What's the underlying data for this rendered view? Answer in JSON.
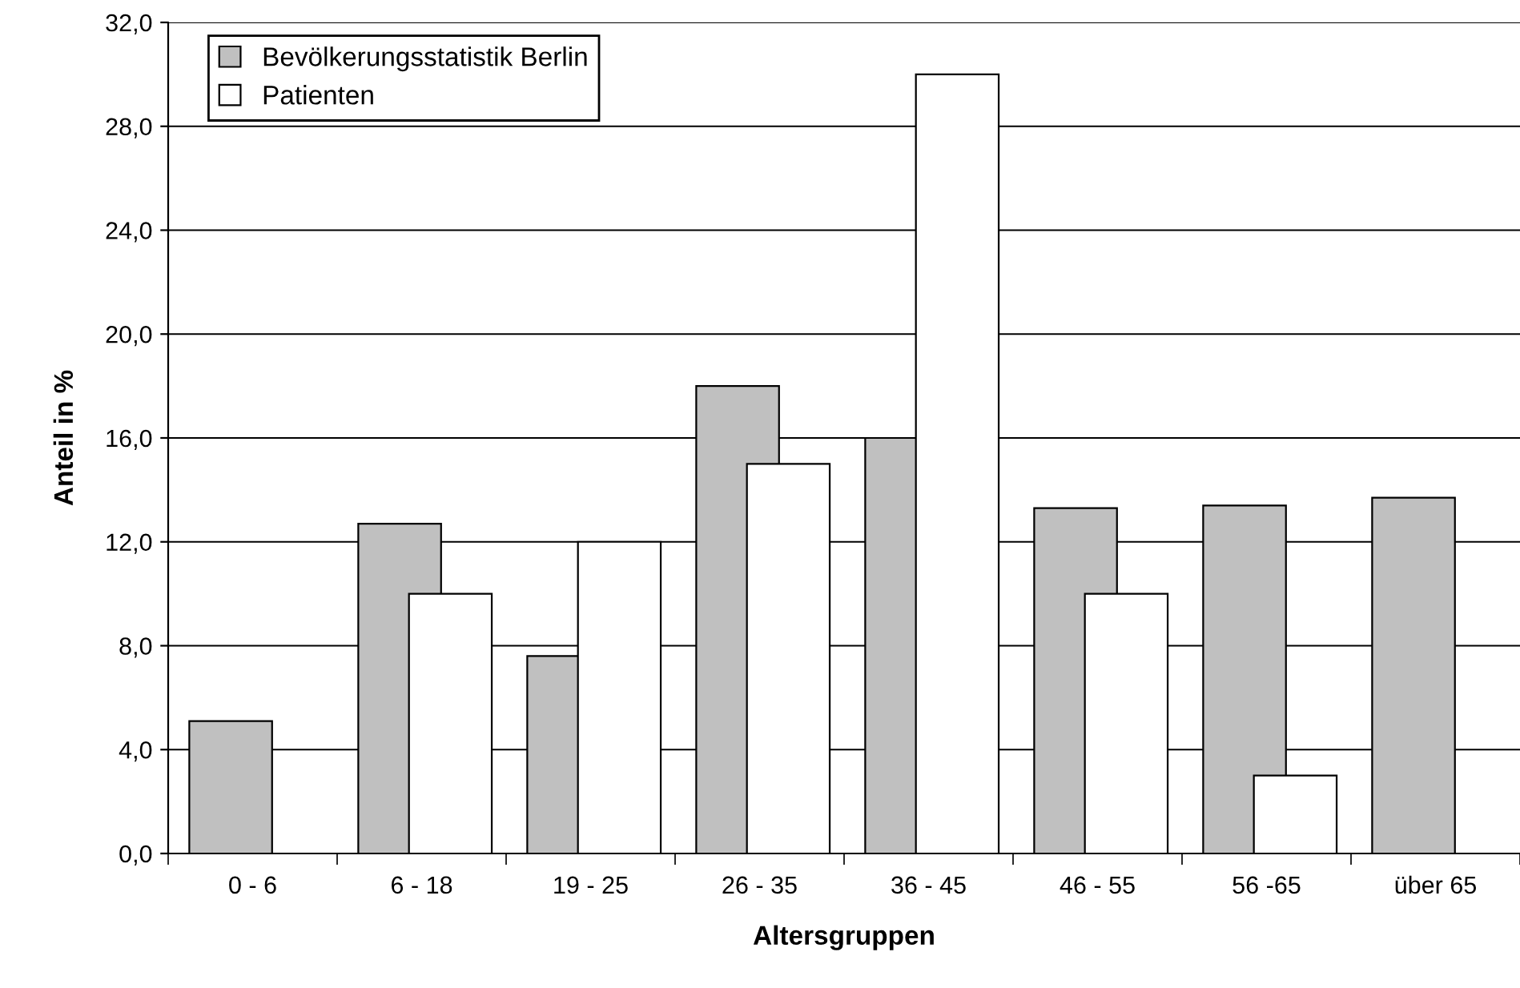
{
  "chart_data": {
    "type": "bar",
    "xlabel": "Altersgruppen",
    "ylabel": "Anteil in %",
    "categories": [
      "0 - 6",
      "6 - 18",
      "19 - 25",
      "26 - 35",
      "36 - 45",
      "46 - 55",
      "56 -65",
      "über 65"
    ],
    "series": [
      {
        "name": "Bevölkerungsstatistik Berlin",
        "color": "#c0c0c0",
        "values": [
          5.1,
          12.7,
          7.6,
          18.0,
          16.0,
          13.3,
          13.4,
          13.7
        ]
      },
      {
        "name": "Patienten",
        "color": "#ffffff",
        "values": [
          null,
          10.0,
          12.0,
          15.0,
          30.0,
          10.0,
          3.0,
          null
        ]
      }
    ],
    "ylim": [
      0,
      32
    ],
    "yticks": [
      {
        "value": 0,
        "label": "0,0"
      },
      {
        "value": 4,
        "label": "4,0"
      },
      {
        "value": 8,
        "label": "8,0"
      },
      {
        "value": 12,
        "label": "12,0"
      },
      {
        "value": 16,
        "label": "16,0"
      },
      {
        "value": 20,
        "label": "20,0"
      },
      {
        "value": 24,
        "label": "24,0"
      },
      {
        "value": 28,
        "label": "28,0"
      },
      {
        "value": 32,
        "label": "32,0"
      }
    ],
    "grid": "y",
    "legend": "top left"
  }
}
